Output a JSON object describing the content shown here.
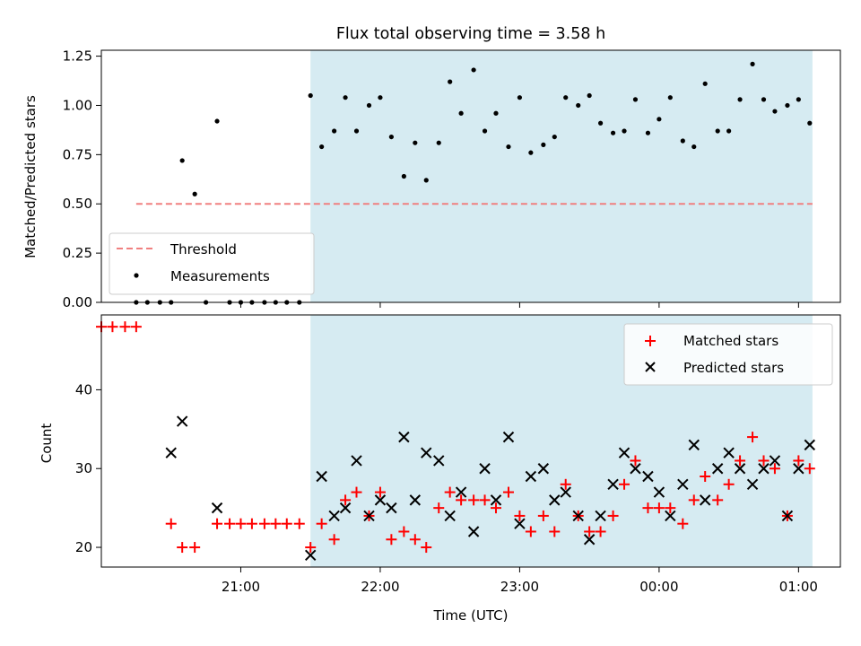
{
  "chart_data": [
    {
      "type": "scatter",
      "title": "Flux total observing time = 3.58 h",
      "xlabel": "",
      "ylabel": "Matched/Predicted stars",
      "ylim": [
        0,
        1.28
      ],
      "yticks": [
        "0.00",
        "0.25",
        "0.50",
        "0.75",
        "1.00",
        "1.25"
      ],
      "shaded_region_hours": [
        21.5,
        25.1
      ],
      "shade_color": "#add8e6",
      "legend_position": "lower-left",
      "threshold": {
        "name": "Threshold",
        "value": 0.5,
        "x_range_hours": [
          20.25,
          25.1
        ],
        "color": "#f08080"
      },
      "measurements": {
        "name": "Measurements",
        "color": "#000000",
        "time_hours": [
          20.25,
          20.33,
          20.42,
          20.5,
          20.58,
          20.67,
          20.75,
          20.83,
          20.92,
          21.0,
          21.08,
          21.17,
          21.25,
          21.33,
          21.42,
          21.5,
          21.58,
          21.67,
          21.75,
          21.83,
          21.92,
          22.0,
          22.08,
          22.17,
          22.25,
          22.33,
          22.42,
          22.5,
          22.58,
          22.67,
          22.75,
          22.83,
          22.92,
          23.0,
          23.08,
          23.17,
          23.25,
          23.33,
          23.42,
          23.5,
          23.58,
          23.67,
          23.75,
          23.83,
          23.92,
          24.0,
          24.08,
          24.17,
          24.25,
          24.33,
          24.42,
          24.5,
          24.58,
          24.67,
          24.75,
          24.83,
          24.92,
          25.0,
          25.08
        ],
        "ratio": [
          0.0,
          0.0,
          0.0,
          0.0,
          0.72,
          0.55,
          0.0,
          0.92,
          0.0,
          0.0,
          0.0,
          0.0,
          0.0,
          0.0,
          0.0,
          1.05,
          0.79,
          0.87,
          1.04,
          0.87,
          1.0,
          1.04,
          0.84,
          0.64,
          0.81,
          0.62,
          0.81,
          1.12,
          0.96,
          1.18,
          0.87,
          0.96,
          0.79,
          1.04,
          0.76,
          0.8,
          0.84,
          1.04,
          1.0,
          1.05,
          0.91,
          0.86,
          0.87,
          1.03,
          0.86,
          0.93,
          1.04,
          0.82,
          0.79,
          1.11,
          0.87,
          0.87,
          1.03,
          1.21,
          1.03,
          0.97,
          1.0,
          1.03,
          0.91
        ]
      }
    },
    {
      "type": "scatter",
      "title": "",
      "xlabel": "Time (UTC)",
      "ylabel": "Count",
      "ylim": [
        17.5,
        49.5
      ],
      "yticks": [
        "20",
        "30",
        "40"
      ],
      "xticks": [
        "21:00",
        "22:00",
        "23:00",
        "00:00",
        "01:00"
      ],
      "xlim_hours": [
        20.0,
        25.3
      ],
      "shaded_region_hours": [
        21.5,
        25.1
      ],
      "legend_position": "upper-right",
      "series": [
        {
          "name": "Matched stars",
          "marker": "+",
          "color": "#ff0000",
          "time_hours": [
            20.0,
            20.08,
            20.17,
            20.25,
            20.5,
            20.58,
            20.67,
            20.83,
            20.92,
            21.0,
            21.08,
            21.17,
            21.25,
            21.33,
            21.42,
            21.5,
            21.58,
            21.67,
            21.75,
            21.83,
            21.92,
            22.0,
            22.08,
            22.17,
            22.25,
            22.33,
            22.42,
            22.5,
            22.58,
            22.67,
            22.75,
            22.83,
            22.92,
            23.0,
            23.08,
            23.17,
            23.25,
            23.33,
            23.42,
            23.5,
            23.58,
            23.67,
            23.75,
            23.83,
            23.92,
            24.0,
            24.08,
            24.17,
            24.25,
            24.33,
            24.42,
            24.5,
            24.58,
            24.67,
            24.75,
            24.83,
            24.92,
            25.0,
            25.08
          ],
          "values": [
            48,
            48,
            48,
            48,
            23,
            20,
            20,
            23,
            23,
            23,
            23,
            23,
            23,
            23,
            23,
            20,
            23,
            21,
            26,
            27,
            24,
            27,
            21,
            22,
            21,
            20,
            25,
            27,
            26,
            26,
            26,
            25,
            27,
            24,
            22,
            24,
            22,
            28,
            24,
            22,
            22,
            24,
            28,
            31,
            25,
            25,
            25,
            23,
            26,
            29,
            26,
            28,
            31,
            34,
            31,
            30,
            24,
            31,
            30
          ]
        },
        {
          "name": "Predicted stars",
          "marker": "x",
          "color": "#000000",
          "time_hours": [
            20.5,
            20.58,
            20.83,
            21.5,
            21.58,
            21.67,
            21.75,
            21.83,
            21.92,
            22.0,
            22.08,
            22.17,
            22.25,
            22.33,
            22.42,
            22.5,
            22.58,
            22.67,
            22.75,
            22.83,
            22.92,
            23.0,
            23.08,
            23.17,
            23.25,
            23.33,
            23.42,
            23.5,
            23.58,
            23.67,
            23.75,
            23.83,
            23.92,
            24.0,
            24.08,
            24.17,
            24.25,
            24.33,
            24.42,
            24.5,
            24.58,
            24.67,
            24.75,
            24.83,
            24.92,
            25.0,
            25.08
          ],
          "values": [
            32,
            36,
            25,
            19,
            29,
            24,
            25,
            31,
            24,
            26,
            25,
            34,
            26,
            32,
            31,
            24,
            27,
            22,
            30,
            26,
            34,
            23,
            29,
            30,
            26,
            27,
            24,
            21,
            24,
            28,
            32,
            30,
            29,
            27,
            24,
            28,
            33,
            26,
            30,
            32,
            30,
            28,
            30,
            31,
            24,
            30,
            33
          ]
        }
      ]
    }
  ]
}
